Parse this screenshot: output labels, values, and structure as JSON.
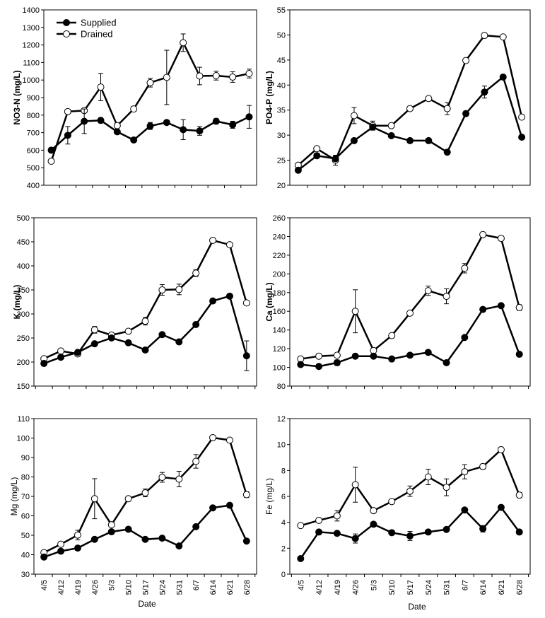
{
  "chart_data": [
    {
      "type": "line",
      "ylabel": "NO3-N (mg/L)",
      "ylim": [
        400,
        1400
      ],
      "yticks": [
        400,
        500,
        600,
        700,
        800,
        900,
        1000,
        1100,
        1200,
        1300,
        1400
      ],
      "categories": [
        "4/5",
        "4/12",
        "4/19",
        "4/26",
        "5/3",
        "5/10",
        "5/17",
        "5/24",
        "5/31",
        "6/7",
        "6/14",
        "6/21",
        "6/28"
      ],
      "series": [
        {
          "name": "Supplied",
          "values": [
            600,
            685,
            765,
            770,
            705,
            658,
            738,
            758,
            717,
            710,
            765,
            745,
            790
          ],
          "errors": [
            15,
            50,
            70,
            15,
            10,
            12,
            20,
            10,
            57,
            25,
            15,
            20,
            65
          ]
        },
        {
          "name": "Drained",
          "values": [
            537,
            820,
            826,
            960,
            740,
            835,
            985,
            1015,
            1213,
            1023,
            1025,
            1017,
            1037
          ],
          "errors": [
            8,
            10,
            10,
            78,
            10,
            15,
            25,
            155,
            50,
            50,
            25,
            30,
            25
          ]
        }
      ]
    },
    {
      "type": "line",
      "ylabel": "PO4-P (mg/L)",
      "ylim": [
        20,
        55
      ],
      "yticks": [
        20,
        25,
        30,
        35,
        40,
        45,
        50,
        55
      ],
      "categories": [
        "4/5",
        "4/12",
        "4/19",
        "4/26",
        "5/3",
        "5/10",
        "5/17",
        "5/24",
        "5/31",
        "6/7",
        "6/14",
        "6/21",
        "6/28"
      ],
      "series": [
        {
          "name": "Supplied",
          "values": [
            23,
            25.9,
            25.3,
            28.9,
            31.6,
            29.9,
            28.9,
            28.9,
            26.6,
            34.3,
            38.6,
            41.6,
            29.6
          ],
          "errors": [
            0.5,
            0.5,
            0.5,
            0.4,
            0.5,
            0.3,
            0.3,
            0.3,
            0.3,
            0.5,
            1.2,
            0.3,
            0.3
          ]
        },
        {
          "name": "Drained",
          "values": [
            24,
            27.3,
            25,
            33.9,
            31.9,
            31.9,
            35.3,
            37.3,
            35.3,
            44.9,
            49.9,
            49.6,
            33.6
          ],
          "errors": [
            0.3,
            0.3,
            1.0,
            1.6,
            0.9,
            0.3,
            0.3,
            0.3,
            1.2,
            0.3,
            0.5,
            0.3,
            0.3
          ]
        }
      ]
    },
    {
      "type": "line",
      "ylabel": "K (mg/L)",
      "ylim": [
        150,
        500
      ],
      "yticks": [
        150,
        200,
        250,
        300,
        350,
        400,
        450,
        500
      ],
      "categories": [
        "4/5",
        "4/12",
        "4/19",
        "4/26",
        "5/3",
        "5/10",
        "5/17",
        "5/24",
        "5/31",
        "6/7",
        "6/14",
        "6/21",
        "6/28"
      ],
      "series": [
        {
          "name": "Supplied",
          "values": [
            197,
            210,
            220,
            238,
            250,
            240,
            225,
            257,
            242,
            278,
            327,
            337,
            213
          ],
          "errors": [
            3,
            3,
            3,
            3,
            3,
            3,
            3,
            3,
            3,
            3,
            3,
            3,
            31
          ]
        },
        {
          "name": "Drained",
          "values": [
            207,
            223,
            217,
            267,
            256,
            264,
            285,
            350,
            351,
            385,
            453,
            444,
            323
          ],
          "errors": [
            3,
            5,
            5,
            7,
            5,
            3,
            8,
            11,
            11,
            7,
            5,
            3,
            3
          ]
        }
      ]
    },
    {
      "type": "line",
      "ylabel": "Ca (mg/L)",
      "ylim": [
        80,
        260
      ],
      "yticks": [
        80,
        100,
        120,
        140,
        160,
        180,
        200,
        220,
        240,
        260
      ],
      "categories": [
        "4/5",
        "4/12",
        "4/19",
        "4/26",
        "5/3",
        "5/10",
        "5/17",
        "5/24",
        "5/31",
        "6/7",
        "6/14",
        "6/21",
        "6/28"
      ],
      "series": [
        {
          "name": "Supplied",
          "values": [
            103,
            101,
            105,
            112,
            112,
            109,
            113,
            116,
            105,
            132,
            162,
            166,
            114
          ],
          "errors": [
            1.5,
            1.5,
            3,
            1.5,
            1.5,
            1.5,
            1.5,
            1.5,
            1.5,
            1.5,
            2,
            1.5,
            1.5
          ]
        },
        {
          "name": "Drained",
          "values": [
            109,
            112,
            113,
            160,
            118,
            134,
            158,
            182,
            176,
            206,
            242,
            238,
            164
          ],
          "errors": [
            1.5,
            1.5,
            2,
            23,
            1.5,
            1.5,
            2,
            5,
            8,
            5,
            1.5,
            1.5,
            3
          ]
        }
      ]
    },
    {
      "type": "line",
      "ylabel": "Mg (mg/L)",
      "ylim": [
        30,
        110
      ],
      "yticks": [
        30,
        40,
        50,
        60,
        70,
        80,
        90,
        100,
        110
      ],
      "categories": [
        "4/5",
        "4/12",
        "4/19",
        "4/26",
        "5/3",
        "5/10",
        "5/17",
        "5/24",
        "5/31",
        "6/7",
        "6/14",
        "6/21",
        "6/28"
      ],
      "series": [
        {
          "name": "Supplied",
          "values": [
            38.8,
            41.8,
            43.4,
            47.9,
            51.8,
            53.1,
            47.9,
            48.5,
            44.5,
            54.4,
            64.1,
            65.4,
            47
          ],
          "errors": [
            0.8,
            0.8,
            0.8,
            0.8,
            0.8,
            0.8,
            0.8,
            0.8,
            0.8,
            0.8,
            0.8,
            0.8,
            0.8
          ]
        },
        {
          "name": "Drained",
          "values": [
            41.1,
            45.4,
            50.1,
            68.8,
            55.4,
            68.8,
            71.8,
            79.8,
            78.9,
            88,
            100.2,
            98.9,
            70.9
          ],
          "errors": [
            0.8,
            0.8,
            2.5,
            10.3,
            0.8,
            0.8,
            2.0,
            2.5,
            4.0,
            3.5,
            0.8,
            0.8,
            1.5
          ]
        }
      ]
    },
    {
      "type": "line",
      "ylabel": "Fe (mg/L)",
      "ylim": [
        0,
        12
      ],
      "yticks": [
        0,
        2,
        4,
        6,
        8,
        10,
        12
      ],
      "categories": [
        "4/5",
        "4/12",
        "4/19",
        "4/26",
        "5/3",
        "5/10",
        "5/17",
        "5/24",
        "5/31",
        "6/7",
        "6/14",
        "6/21",
        "6/28"
      ],
      "series": [
        {
          "name": "Supplied",
          "values": [
            1.2,
            3.25,
            3.15,
            2.75,
            3.85,
            3.2,
            2.95,
            3.25,
            3.45,
            4.95,
            3.5,
            5.15,
            3.25
          ],
          "errors": [
            0.1,
            0.1,
            0.1,
            0.35,
            0.1,
            0.1,
            0.35,
            0.1,
            0.1,
            0.1,
            0.25,
            0.1,
            0.1
          ]
        },
        {
          "name": "Drained",
          "values": [
            3.75,
            4.15,
            4.5,
            6.9,
            4.9,
            5.6,
            6.4,
            7.5,
            6.7,
            7.9,
            8.3,
            9.6,
            6.1
          ],
          "errors": [
            0.1,
            0.1,
            0.4,
            1.35,
            0.1,
            0.1,
            0.4,
            0.6,
            0.65,
            0.55,
            0.2,
            0.2,
            0.2
          ]
        }
      ]
    }
  ],
  "legend": {
    "supplied": "Supplied",
    "drained": "Drained"
  },
  "xaxis_title": "Date",
  "colors": {
    "line": "#000000",
    "supplied_marker": "#000000",
    "drained_marker": "#ffffff"
  }
}
